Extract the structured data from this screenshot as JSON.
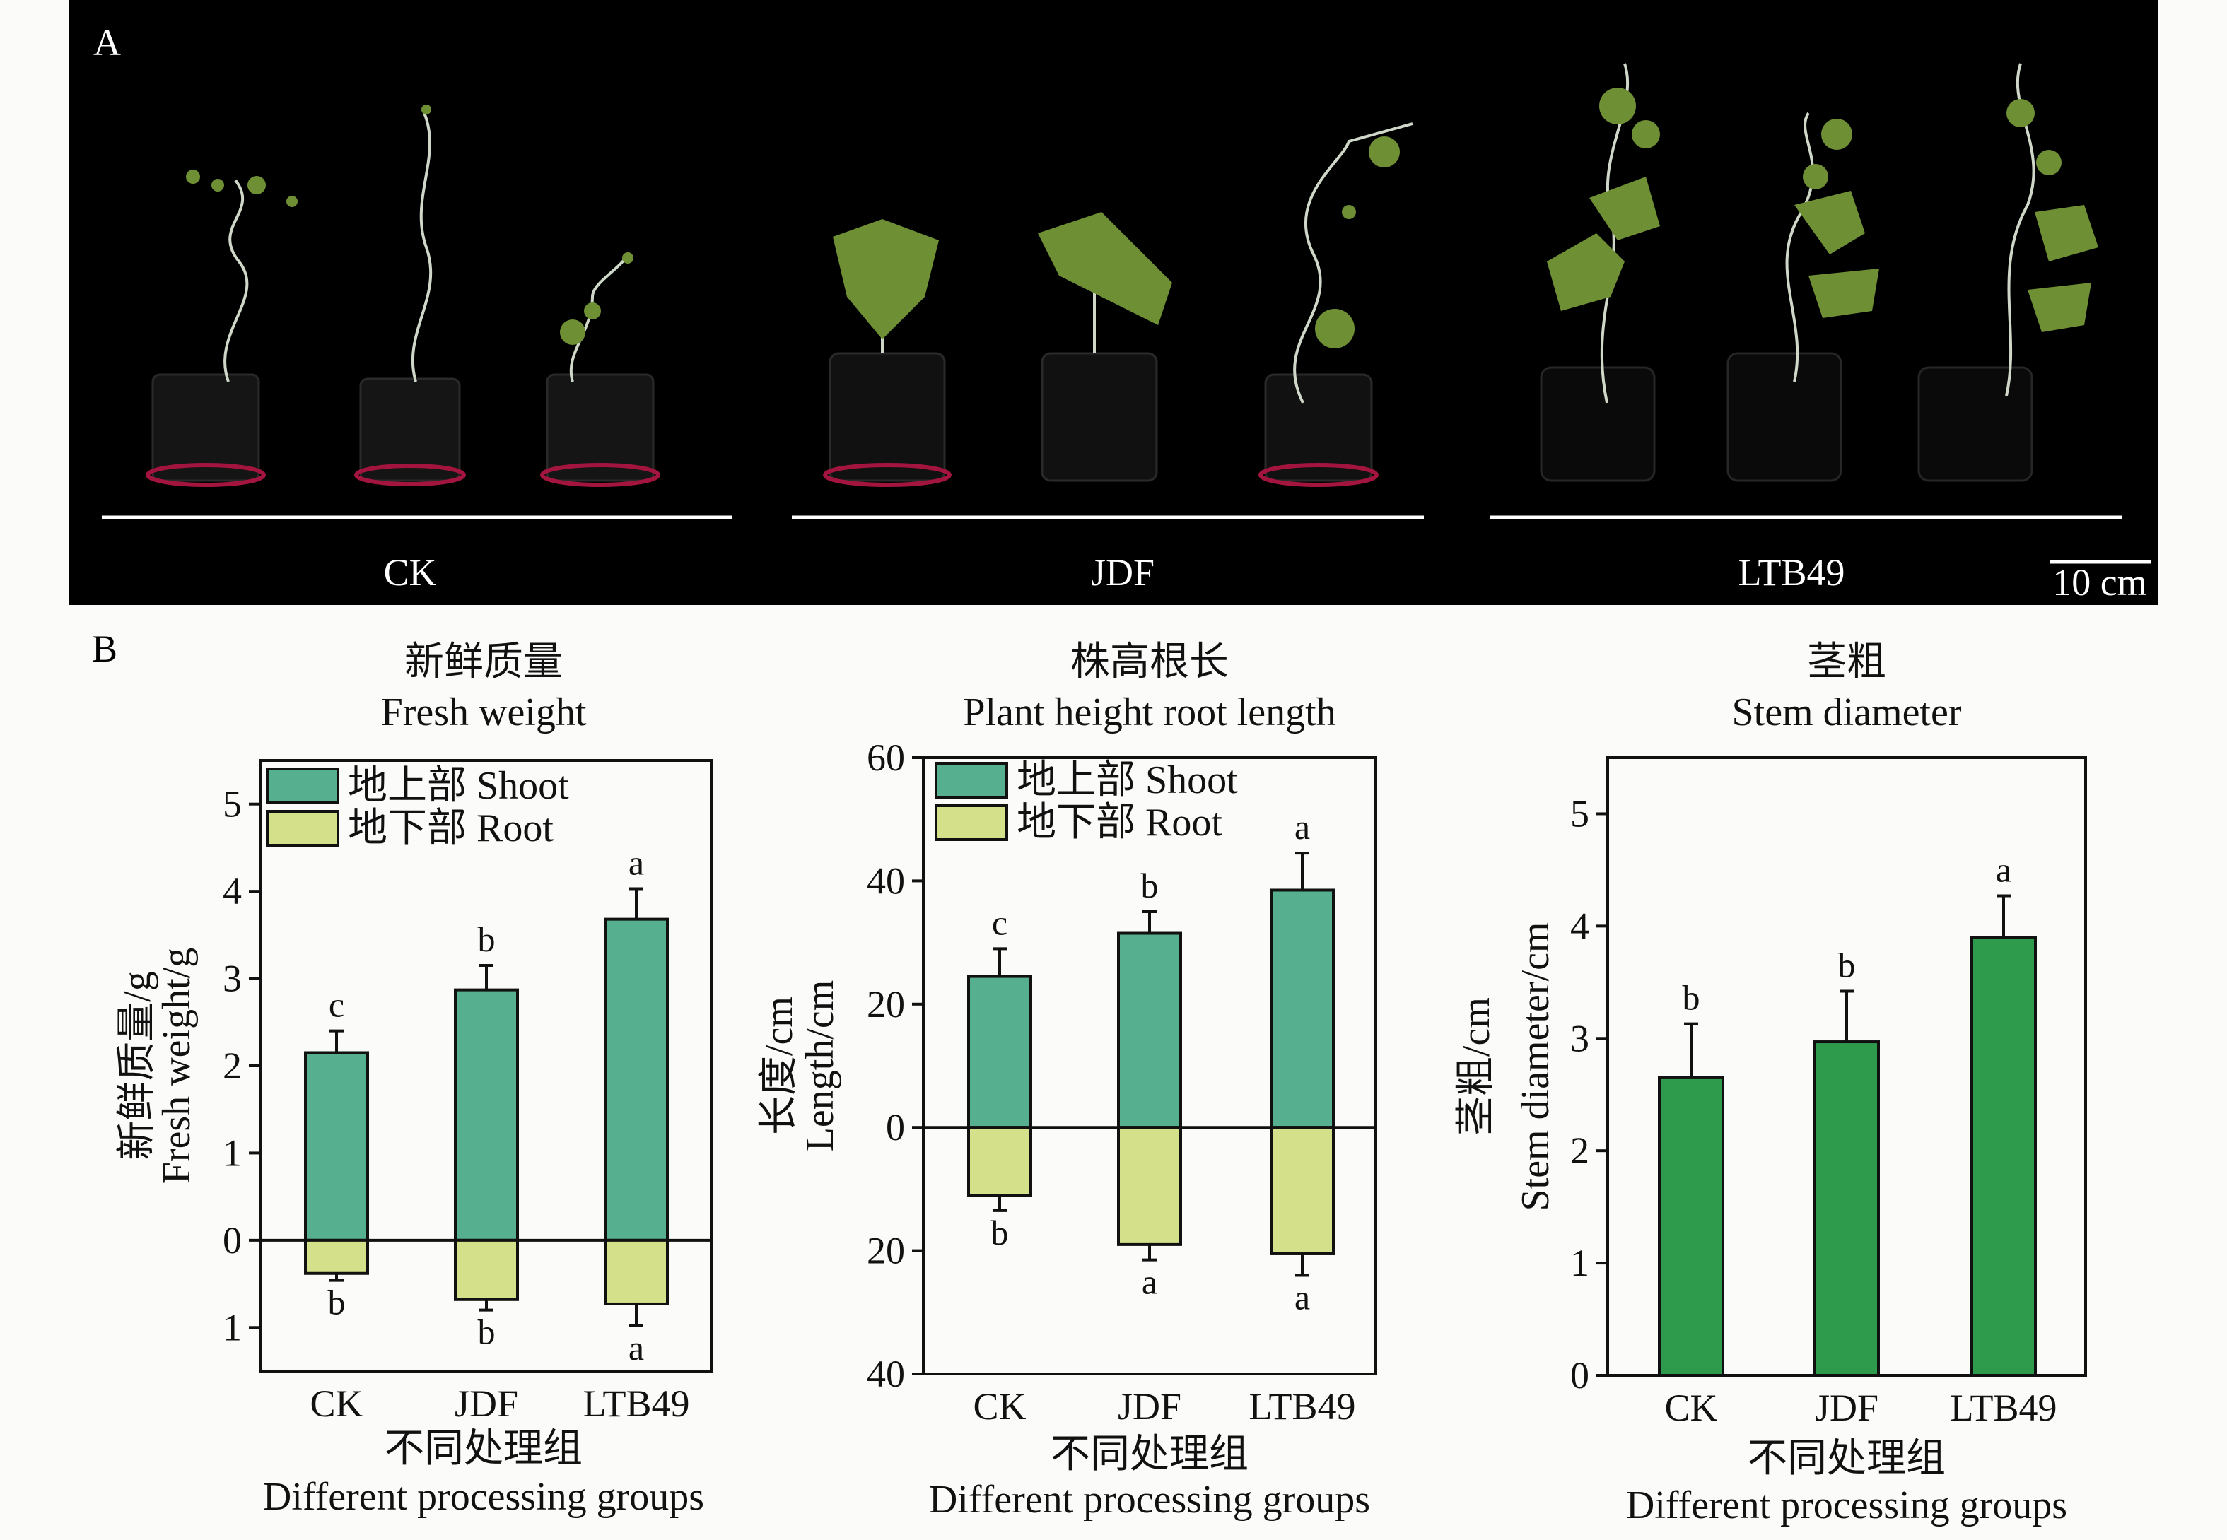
{
  "panelA": {
    "letter": "A",
    "groups": [
      "CK",
      "JDF",
      "LTB49"
    ],
    "scale_bar": "10 cm",
    "colors": {
      "background": "#000000",
      "leaf": "#6f8f35",
      "pot_rim": "#c2185b"
    }
  },
  "panelB": {
    "letter": "B"
  },
  "colors": {
    "shoot": "#56b08f",
    "root": "#d4e08a",
    "stem": "#2e9a4b"
  },
  "chart_data": [
    {
      "type": "bar",
      "title_cn": "新鲜质量",
      "title_en": "Fresh weight",
      "categories": [
        "CK",
        "JDF",
        "LTB49"
      ],
      "xlabel_cn": "不同处理组",
      "xlabel_en": "Different processing groups",
      "ylabel_cn": "新鲜质量/g",
      "ylabel_en": "Fresh weight/g",
      "ylim": [
        -1.5,
        5.5
      ],
      "yticks": [
        {
          "v": 5,
          "t": "5"
        },
        {
          "v": 4,
          "t": "4"
        },
        {
          "v": 3,
          "t": "3"
        },
        {
          "v": 2,
          "t": "2"
        },
        {
          "v": 1,
          "t": "1"
        },
        {
          "v": 0,
          "t": "0"
        },
        {
          "v": -1,
          "t": "1"
        }
      ],
      "legend": [
        {
          "name": "地上部 Shoot",
          "key": "shoot"
        },
        {
          "name": "地下部 Root",
          "key": "root"
        }
      ],
      "series": [
        {
          "name": "地上部 Shoot",
          "key": "shoot",
          "values": [
            2.15,
            2.87,
            3.68
          ],
          "errors": [
            0.25,
            0.28,
            0.35
          ],
          "letters": [
            "c",
            "b",
            "a"
          ]
        },
        {
          "name": "地下部 Root",
          "key": "root",
          "values": [
            0.38,
            0.68,
            0.73
          ],
          "errors": [
            0.08,
            0.12,
            0.25
          ],
          "letters": [
            "b",
            "b",
            "a"
          ]
        }
      ]
    },
    {
      "type": "bar",
      "title_cn": "株高根长",
      "title_en": "Plant height root length",
      "categories": [
        "CK",
        "JDF",
        "LTB49"
      ],
      "xlabel_cn": "不同处理组",
      "xlabel_en": "Different processing groups",
      "ylabel_cn": "长度/cm",
      "ylabel_en": "Length/cm",
      "ylim": [
        -40,
        60
      ],
      "yticks": [
        {
          "v": 60,
          "t": "60"
        },
        {
          "v": 40,
          "t": "40"
        },
        {
          "v": 20,
          "t": "20"
        },
        {
          "v": 0,
          "t": "0"
        },
        {
          "v": -20,
          "t": "20"
        },
        {
          "v": -40,
          "t": "40"
        }
      ],
      "legend": [
        {
          "name": "地上部 Shoot",
          "key": "shoot"
        },
        {
          "name": "地下部 Root",
          "key": "root"
        }
      ],
      "series": [
        {
          "name": "地上部 Shoot",
          "key": "shoot",
          "values": [
            24.5,
            31.5,
            38.5
          ],
          "errors": [
            4.5,
            3.5,
            6.0
          ],
          "letters": [
            "c",
            "b",
            "a"
          ]
        },
        {
          "name": "地下部 Root",
          "key": "root",
          "values": [
            11.0,
            19.0,
            20.5
          ],
          "errors": [
            2.5,
            2.5,
            3.5
          ],
          "letters": [
            "b",
            "a",
            "a"
          ]
        }
      ]
    },
    {
      "type": "bar",
      "title_cn": "茎粗",
      "title_en": "Stem diameter",
      "categories": [
        "CK",
        "JDF",
        "LTB49"
      ],
      "xlabel_cn": "不同处理组",
      "xlabel_en": "Different processing groups",
      "ylabel_cn": "茎粗/cm",
      "ylabel_en": "Stem diameter/cm",
      "ylim": [
        0,
        5.5
      ],
      "yticks": [
        {
          "v": 5,
          "t": "5"
        },
        {
          "v": 4,
          "t": "4"
        },
        {
          "v": 3,
          "t": "3"
        },
        {
          "v": 2,
          "t": "2"
        },
        {
          "v": 1,
          "t": "1"
        },
        {
          "v": 0,
          "t": "0"
        }
      ],
      "series": [
        {
          "name": "Stem diameter",
          "key": "stem",
          "values": [
            2.65,
            2.97,
            3.9
          ],
          "errors": [
            0.48,
            0.45,
            0.37
          ],
          "letters": [
            "b",
            "b",
            "a"
          ]
        }
      ]
    }
  ]
}
